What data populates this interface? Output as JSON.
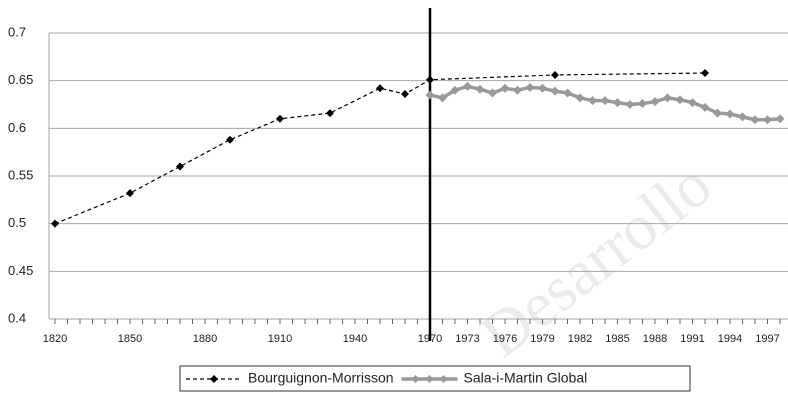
{
  "chart_data": {
    "type": "line",
    "watermark": "Desarrollo",
    "categories": [
      "1820",
      null,
      null,
      null,
      null,
      null,
      "1850",
      null,
      null,
      null,
      null,
      null,
      "1880",
      null,
      null,
      null,
      null,
      null,
      "1910",
      null,
      null,
      null,
      null,
      null,
      "1940",
      null,
      null,
      null,
      null,
      null,
      "1970",
      null,
      null,
      "1973",
      null,
      null,
      "1976",
      null,
      null,
      "1979",
      null,
      null,
      "1982",
      null,
      null,
      "1985",
      null,
      null,
      "1988",
      null,
      null,
      "1991",
      null,
      null,
      "1994",
      null,
      null,
      "1997",
      null
    ],
    "series": [
      {
        "name": "Bourguignon-Morrisson",
        "color": "#000000",
        "dashed": true,
        "values": [
          0.5,
          null,
          null,
          null,
          null,
          null,
          0.532,
          null,
          null,
          null,
          0.56,
          null,
          null,
          null,
          0.588,
          null,
          null,
          null,
          0.61,
          null,
          null,
          null,
          0.616,
          null,
          null,
          null,
          0.642,
          null,
          0.636,
          null,
          0.651,
          null,
          null,
          null,
          null,
          null,
          null,
          null,
          null,
          null,
          0.656,
          null,
          null,
          null,
          null,
          null,
          null,
          null,
          null,
          null,
          null,
          null,
          0.658,
          null,
          null,
          null,
          null,
          null,
          null
        ]
      },
      {
        "name": "Sala-i-Martin Global",
        "color": "#999999",
        "dashed": false,
        "values": [
          null,
          null,
          null,
          null,
          null,
          null,
          null,
          null,
          null,
          null,
          null,
          null,
          null,
          null,
          null,
          null,
          null,
          null,
          null,
          null,
          null,
          null,
          null,
          null,
          null,
          null,
          null,
          null,
          null,
          null,
          0.635,
          0.632,
          0.64,
          0.644,
          0.641,
          0.637,
          0.642,
          0.64,
          0.643,
          0.642,
          0.639,
          0.637,
          0.632,
          0.629,
          0.629,
          0.627,
          0.625,
          0.626,
          0.628,
          0.632,
          0.63,
          0.627,
          0.622,
          0.616,
          0.615,
          0.612,
          0.609,
          0.609,
          0.61
        ]
      }
    ],
    "connect_nulls": true,
    "ylim": [
      0.4,
      0.7
    ],
    "yticks": [
      0.4,
      0.45,
      0.5,
      0.55,
      0.6,
      0.65,
      0.7
    ],
    "grid": true
  }
}
